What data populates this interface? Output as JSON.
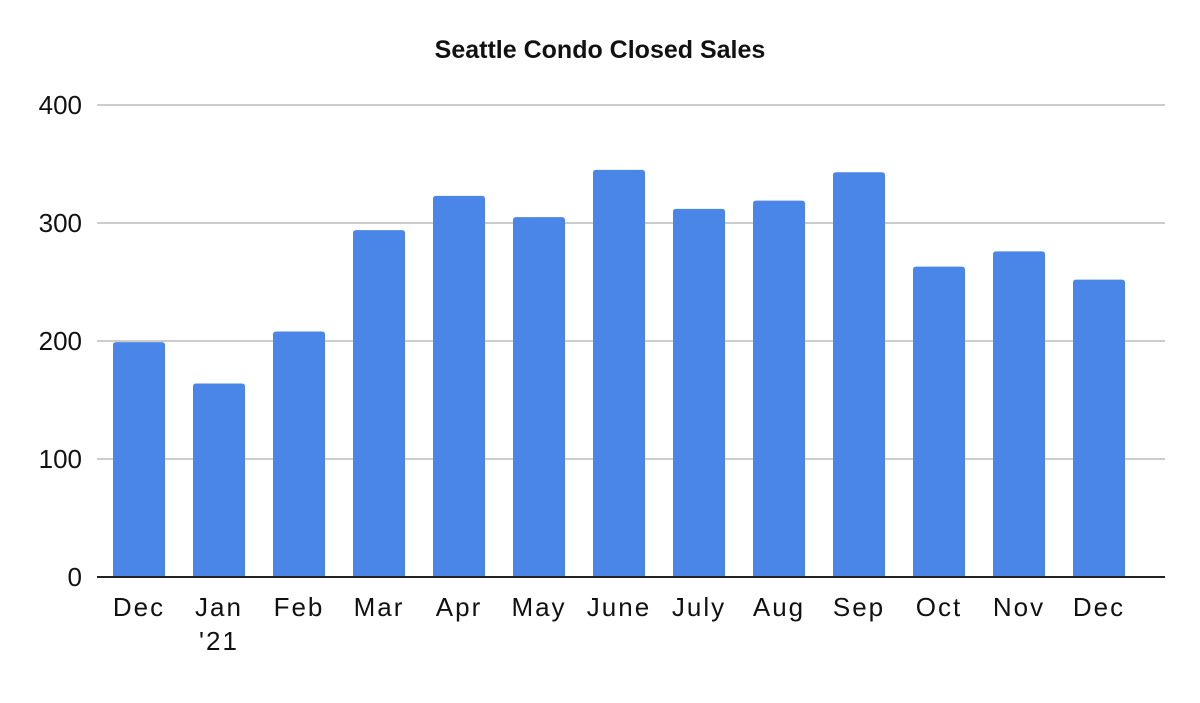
{
  "chart_data": {
    "type": "bar",
    "title": "Seattle Condo Closed Sales",
    "xlabel": "",
    "ylabel": "",
    "categories": [
      [
        "Dec"
      ],
      [
        "Jan",
        "'21"
      ],
      [
        "Feb"
      ],
      [
        "Mar"
      ],
      [
        "Apr"
      ],
      [
        "May"
      ],
      [
        "June"
      ],
      [
        "July"
      ],
      [
        "Aug"
      ],
      [
        "Sep"
      ],
      [
        "Oct"
      ],
      [
        "Nov"
      ],
      [
        "Dec"
      ]
    ],
    "values": [
      199,
      164,
      208,
      294,
      323,
      305,
      345,
      312,
      319,
      343,
      263,
      276,
      252
    ],
    "ylim": [
      0,
      400
    ],
    "yticks": [
      "0",
      "100",
      "200",
      "300",
      "400"
    ],
    "grid": true,
    "legend": "none",
    "colors": {
      "bar": "#4a86e8",
      "grid": "#cccccc",
      "axis": "#222222",
      "text": "#111111"
    }
  }
}
